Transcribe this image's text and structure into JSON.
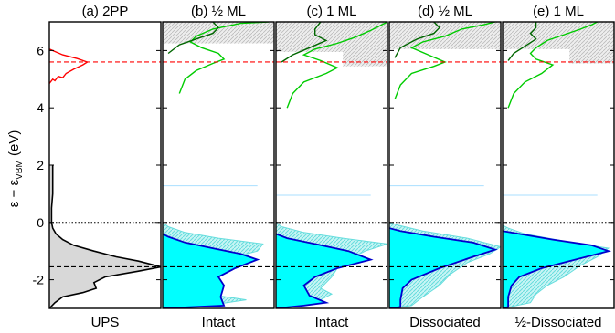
{
  "chart_data": {
    "type": "line",
    "ylabel_main": "ε − ε",
    "ylabel_sub": "VBM",
    "ylabel_unit": " (eV)",
    "ylim": [
      -3.0,
      7.0
    ],
    "yticks": [
      -2,
      0,
      2,
      4,
      6
    ],
    "ytick_labels": [
      "-2",
      "0",
      "2",
      "4",
      "6"
    ],
    "reference_lines": {
      "upper": 5.6,
      "lower": -1.55,
      "zero": 0
    },
    "colors": {
      "ups": "#000000",
      "twopp": "#ff0000",
      "ref_red": "#ff0000",
      "ref_dark": "#000000",
      "cyan_fill": "#00ffff",
      "cyan_hatch": "#66dddd",
      "occupied_line": "#0000cc",
      "unocc_light": "#00cc00",
      "unocc_dark": "#006600",
      "ups_fill": "#d8d8d8",
      "shade": "#e2e2e2"
    },
    "panels": [
      {
        "id": "a",
        "title": "(a) 2PP",
        "bottom_label": "UPS",
        "curves": {
          "ups": [
            [
              0.0,
              -3.0
            ],
            [
              0.05,
              -2.8
            ],
            [
              0.12,
              -2.6
            ],
            [
              0.3,
              -2.45
            ],
            [
              0.42,
              -2.3
            ],
            [
              0.4,
              -2.1
            ],
            [
              0.5,
              -1.9
            ],
            [
              0.8,
              -1.7
            ],
            [
              1.0,
              -1.55
            ],
            [
              0.8,
              -1.35
            ],
            [
              0.6,
              -1.2
            ],
            [
              0.4,
              -1.0
            ],
            [
              0.22,
              -0.8
            ],
            [
              0.12,
              -0.6
            ],
            [
              0.06,
              -0.4
            ],
            [
              0.03,
              -0.2
            ],
            [
              0.02,
              0.0
            ],
            [
              0.02,
              0.5
            ],
            [
              0.03,
              1.0
            ],
            [
              0.03,
              1.5
            ],
            [
              0.03,
              2.0
            ]
          ],
          "twopp": [
            [
              0.0,
              4.85
            ],
            [
              0.03,
              5.0
            ],
            [
              0.05,
              4.95
            ],
            [
              0.08,
              5.1
            ],
            [
              0.12,
              5.05
            ],
            [
              0.15,
              5.2
            ],
            [
              0.22,
              5.35
            ],
            [
              0.3,
              5.5
            ],
            [
              0.34,
              5.6
            ],
            [
              0.25,
              5.72
            ],
            [
              0.12,
              5.85
            ],
            [
              0.06,
              5.95
            ],
            [
              0.0,
              6.05
            ]
          ]
        }
      },
      {
        "id": "b",
        "title": "(b) ½ ML",
        "bottom_label": "Intact",
        "shade_top": 6.25,
        "thin_line": 1.28,
        "unocc_light": [
          [
            0.15,
            4.5
          ],
          [
            0.2,
            5.0
          ],
          [
            0.3,
            5.3
          ],
          [
            0.45,
            5.55
          ],
          [
            0.55,
            5.7
          ],
          [
            0.5,
            5.9
          ],
          [
            0.35,
            6.1
          ],
          [
            0.25,
            6.3
          ],
          [
            0.3,
            6.5
          ],
          [
            0.45,
            6.75
          ],
          [
            0.7,
            6.95
          ],
          [
            0.95,
            7.0
          ]
        ],
        "unocc_dark": [
          [
            0.05,
            5.9
          ],
          [
            0.15,
            6.2
          ],
          [
            0.3,
            6.4
          ],
          [
            0.45,
            6.6
          ],
          [
            0.5,
            6.8
          ],
          [
            0.45,
            7.0
          ]
        ],
        "dos_dark": [
          [
            0.0,
            -3.0
          ],
          [
            0.55,
            -2.9
          ],
          [
            0.52,
            -2.6
          ],
          [
            0.55,
            -2.2
          ],
          [
            0.5,
            -1.9
          ],
          [
            0.65,
            -1.6
          ],
          [
            0.85,
            -1.3
          ],
          [
            0.7,
            -1.1
          ],
          [
            0.45,
            -0.9
          ],
          [
            0.2,
            -0.7
          ],
          [
            0.05,
            -0.5
          ],
          [
            0.0,
            -0.4
          ]
        ],
        "dos_light": [
          [
            0.0,
            -3.0
          ],
          [
            0.4,
            -2.9
          ],
          [
            0.75,
            -2.7
          ],
          [
            0.4,
            -2.5
          ],
          [
            0.5,
            -2.2
          ],
          [
            0.5,
            -1.9
          ],
          [
            0.6,
            -1.5
          ],
          [
            0.65,
            -1.2
          ],
          [
            0.85,
            -1.0
          ],
          [
            0.9,
            -0.75
          ],
          [
            0.5,
            -0.55
          ],
          [
            0.2,
            -0.35
          ],
          [
            0.05,
            -0.15
          ],
          [
            0.0,
            0.0
          ]
        ]
      },
      {
        "id": "c",
        "title": "(c) 1 ML",
        "bottom_label": "Intact",
        "shade_top": 5.95,
        "shade_bottom": 5.45,
        "thin_line": 0.95,
        "unocc_light": [
          [
            0.1,
            4.0
          ],
          [
            0.15,
            4.5
          ],
          [
            0.25,
            4.9
          ],
          [
            0.45,
            5.2
          ],
          [
            0.55,
            5.4
          ],
          [
            0.4,
            5.65
          ],
          [
            0.25,
            5.85
          ],
          [
            0.35,
            6.05
          ],
          [
            0.55,
            6.25
          ],
          [
            0.7,
            6.45
          ],
          [
            0.85,
            6.7
          ],
          [
            0.95,
            6.9
          ],
          [
            1.0,
            7.0
          ]
        ],
        "unocc_dark": [
          [
            0.05,
            5.6
          ],
          [
            0.15,
            5.85
          ],
          [
            0.3,
            6.1
          ],
          [
            0.45,
            6.35
          ],
          [
            0.35,
            6.55
          ],
          [
            0.35,
            6.75
          ],
          [
            0.4,
            7.0
          ]
        ],
        "dos_dark": [
          [
            0.0,
            -3.0
          ],
          [
            0.25,
            -2.9
          ],
          [
            0.45,
            -2.8
          ],
          [
            0.3,
            -2.55
          ],
          [
            0.25,
            -2.2
          ],
          [
            0.35,
            -1.9
          ],
          [
            0.55,
            -1.6
          ],
          [
            0.85,
            -1.3
          ],
          [
            0.65,
            -1.0
          ],
          [
            0.35,
            -0.75
          ],
          [
            0.1,
            -0.55
          ],
          [
            0.0,
            -0.4
          ]
        ],
        "dos_light": [
          [
            0.0,
            -3.0
          ],
          [
            0.35,
            -2.8
          ],
          [
            0.5,
            -2.5
          ],
          [
            0.4,
            -2.3
          ],
          [
            0.5,
            -1.9
          ],
          [
            0.55,
            -1.6
          ],
          [
            0.65,
            -1.3
          ],
          [
            0.8,
            -1.0
          ],
          [
            1.0,
            -0.75
          ],
          [
            0.6,
            -0.55
          ],
          [
            0.25,
            -0.35
          ],
          [
            0.05,
            -0.15
          ],
          [
            0.0,
            0.0
          ]
        ]
      },
      {
        "id": "d",
        "title": "(d) ½ ML",
        "bottom_label": "Dissociated",
        "shade_top": 6.05,
        "thin_line": 1.28,
        "unocc_light": [
          [
            0.05,
            4.3
          ],
          [
            0.1,
            4.8
          ],
          [
            0.2,
            5.2
          ],
          [
            0.4,
            5.45
          ],
          [
            0.5,
            5.6
          ],
          [
            0.35,
            5.85
          ],
          [
            0.2,
            6.1
          ],
          [
            0.3,
            6.3
          ],
          [
            0.5,
            6.5
          ],
          [
            0.65,
            6.75
          ],
          [
            0.85,
            6.9
          ],
          [
            0.95,
            7.0
          ]
        ],
        "unocc_dark": [
          [
            0.05,
            5.75
          ],
          [
            0.1,
            6.1
          ],
          [
            0.25,
            6.4
          ],
          [
            0.4,
            6.6
          ],
          [
            0.45,
            6.8
          ],
          [
            0.4,
            7.0
          ]
        ],
        "dos_dark": [
          [
            0.0,
            -3.0
          ],
          [
            0.1,
            -2.95
          ],
          [
            0.1,
            -2.7
          ],
          [
            0.12,
            -2.3
          ],
          [
            0.2,
            -2.0
          ],
          [
            0.45,
            -1.6
          ],
          [
            0.75,
            -1.2
          ],
          [
            0.95,
            -0.95
          ],
          [
            0.75,
            -0.7
          ],
          [
            0.4,
            -0.5
          ],
          [
            0.1,
            -0.3
          ],
          [
            0.0,
            -0.2
          ]
        ],
        "dos_light": [
          [
            0.0,
            -3.0
          ],
          [
            0.2,
            -2.9
          ],
          [
            0.3,
            -2.6
          ],
          [
            0.45,
            -2.2
          ],
          [
            0.55,
            -1.8
          ],
          [
            0.7,
            -1.4
          ],
          [
            0.9,
            -1.1
          ],
          [
            1.0,
            -0.85
          ],
          [
            0.7,
            -0.55
          ],
          [
            0.3,
            -0.3
          ],
          [
            0.08,
            -0.1
          ],
          [
            0.0,
            0.0
          ]
        ]
      },
      {
        "id": "e",
        "title": "(e) 1 ML",
        "bottom_label": "½-Dissociated",
        "shade_top": 6.05,
        "shade_bottom": 5.55,
        "thin_line": 0.95,
        "unocc_light": [
          [
            0.05,
            4.0
          ],
          [
            0.1,
            4.5
          ],
          [
            0.2,
            4.9
          ],
          [
            0.35,
            5.2
          ],
          [
            0.45,
            5.5
          ],
          [
            0.3,
            5.7
          ],
          [
            0.25,
            5.9
          ],
          [
            0.3,
            6.1
          ],
          [
            0.4,
            6.35
          ],
          [
            0.55,
            6.55
          ],
          [
            0.7,
            6.75
          ],
          [
            0.8,
            6.9
          ],
          [
            0.85,
            7.0
          ]
        ],
        "unocc_dark": [
          [
            0.05,
            5.65
          ],
          [
            0.1,
            5.9
          ],
          [
            0.2,
            6.15
          ],
          [
            0.3,
            6.4
          ],
          [
            0.25,
            6.6
          ],
          [
            0.3,
            6.8
          ],
          [
            0.3,
            7.0
          ]
        ],
        "dos_dark": [
          [
            0.0,
            -3.0
          ],
          [
            0.05,
            -2.95
          ],
          [
            0.05,
            -2.6
          ],
          [
            0.08,
            -2.2
          ],
          [
            0.15,
            -1.9
          ],
          [
            0.35,
            -1.6
          ],
          [
            0.65,
            -1.3
          ],
          [
            0.95,
            -1.0
          ],
          [
            0.8,
            -0.8
          ],
          [
            0.45,
            -0.6
          ],
          [
            0.15,
            -0.4
          ],
          [
            0.0,
            -0.3
          ]
        ],
        "dos_light": [
          [
            0.0,
            -3.0
          ],
          [
            0.25,
            -2.8
          ],
          [
            0.3,
            -2.5
          ],
          [
            0.4,
            -2.2
          ],
          [
            0.55,
            -1.9
          ],
          [
            0.7,
            -1.5
          ],
          [
            0.85,
            -1.2
          ],
          [
            0.95,
            -0.9
          ],
          [
            0.55,
            -0.65
          ],
          [
            0.2,
            -0.4
          ],
          [
            0.05,
            -0.2
          ],
          [
            0.0,
            -0.1
          ]
        ]
      }
    ]
  }
}
